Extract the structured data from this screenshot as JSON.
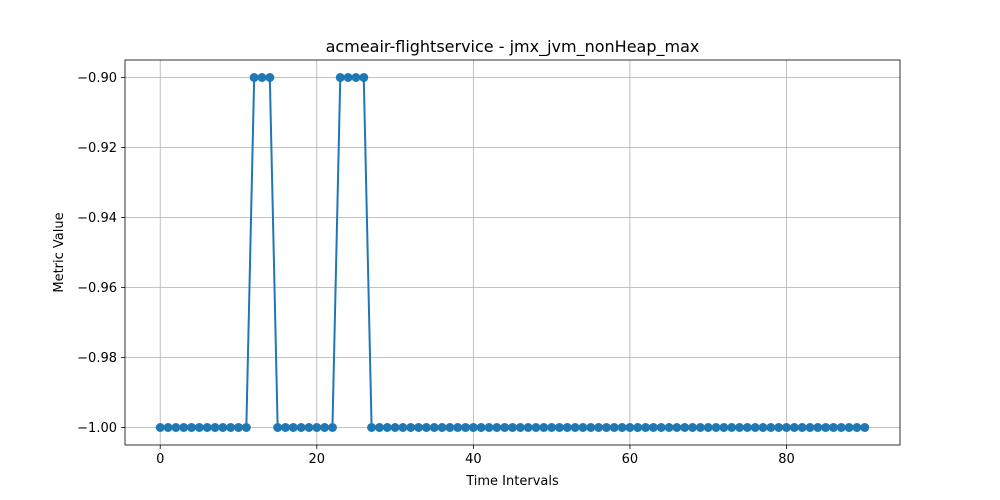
{
  "chart_data": {
    "type": "line",
    "title": "acmeair-flightservice - jmx_jvm_nonHeap_max",
    "xlabel": "Time Intervals",
    "ylabel": "Metric Value",
    "xlim": [
      -4.5,
      94.5
    ],
    "ylim": [
      -1.005,
      -0.895
    ],
    "xticks": [
      0,
      20,
      40,
      60,
      80
    ],
    "xtick_labels": [
      "0",
      "20",
      "40",
      "60",
      "80"
    ],
    "yticks": [
      -1.0,
      -0.98,
      -0.96,
      -0.94,
      -0.92,
      -0.9
    ],
    "ytick_labels": [
      "−1.00",
      "−0.98",
      "−0.96",
      "−0.94",
      "−0.92",
      "−0.90"
    ],
    "grid": true,
    "marker": "circle",
    "series": [
      {
        "color": "#1f77b4",
        "x": [
          0,
          1,
          2,
          3,
          4,
          5,
          6,
          7,
          8,
          9,
          10,
          11,
          12,
          13,
          14,
          15,
          16,
          17,
          18,
          19,
          20,
          21,
          22,
          23,
          24,
          25,
          26,
          27,
          28,
          29,
          30,
          31,
          32,
          33,
          34,
          35,
          36,
          37,
          38,
          39,
          40,
          41,
          42,
          43,
          44,
          45,
          46,
          47,
          48,
          49,
          50,
          51,
          52,
          53,
          54,
          55,
          56,
          57,
          58,
          59,
          60,
          61,
          62,
          63,
          64,
          65,
          66,
          67,
          68,
          69,
          70,
          71,
          72,
          73,
          74,
          75,
          76,
          77,
          78,
          79,
          80,
          81,
          82,
          83,
          84,
          85,
          86,
          87,
          88,
          89,
          90
        ],
        "values": [
          -1.0,
          -1.0,
          -1.0,
          -1.0,
          -1.0,
          -1.0,
          -1.0,
          -1.0,
          -1.0,
          -1.0,
          -1.0,
          -1.0,
          -0.9,
          -0.9,
          -0.9,
          -1.0,
          -1.0,
          -1.0,
          -1.0,
          -1.0,
          -1.0,
          -1.0,
          -1.0,
          -0.9,
          -0.9,
          -0.9,
          -0.9,
          -1.0,
          -1.0,
          -1.0,
          -1.0,
          -1.0,
          -1.0,
          -1.0,
          -1.0,
          -1.0,
          -1.0,
          -1.0,
          -1.0,
          -1.0,
          -1.0,
          -1.0,
          -1.0,
          -1.0,
          -1.0,
          -1.0,
          -1.0,
          -1.0,
          -1.0,
          -1.0,
          -1.0,
          -1.0,
          -1.0,
          -1.0,
          -1.0,
          -1.0,
          -1.0,
          -1.0,
          -1.0,
          -1.0,
          -1.0,
          -1.0,
          -1.0,
          -1.0,
          -1.0,
          -1.0,
          -1.0,
          -1.0,
          -1.0,
          -1.0,
          -1.0,
          -1.0,
          -1.0,
          -1.0,
          -1.0,
          -1.0,
          -1.0,
          -1.0,
          -1.0,
          -1.0,
          -1.0,
          -1.0,
          -1.0,
          -1.0,
          -1.0,
          -1.0,
          -1.0,
          -1.0,
          -1.0,
          -1.0,
          -1.0
        ]
      }
    ]
  }
}
